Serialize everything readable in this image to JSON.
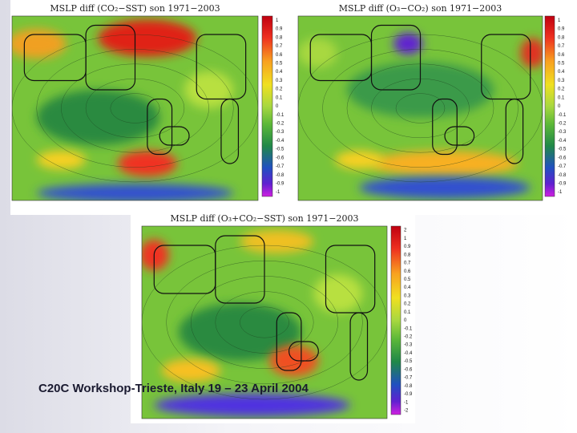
{
  "panels": [
    {
      "title": "MSLP diff (CO₂−SST) son 1971−2003",
      "scale": [
        1,
        0.9,
        0.8,
        0.7,
        0.6,
        0.5,
        0.4,
        0.3,
        0.2,
        0.1,
        0,
        -0.1,
        -0.2,
        -0.3,
        -0.4,
        -0.5,
        -0.6,
        -0.7,
        -0.8,
        -0.9,
        -1
      ]
    },
    {
      "title": "MSLP diff (O₃−CO₂) son 1971−2003",
      "scale": [
        1,
        0.9,
        0.8,
        0.7,
        0.6,
        0.5,
        0.4,
        0.3,
        0.2,
        0.1,
        0,
        -0.1,
        -0.2,
        -0.3,
        -0.4,
        -0.5,
        -0.6,
        -0.7,
        -0.8,
        -0.9,
        -1
      ]
    },
    {
      "title": "MSLP diff (O₃+CO₂−SST) son 1971−2003",
      "scale": [
        2,
        1,
        0.9,
        0.8,
        0.7,
        0.6,
        0.5,
        0.4,
        0.3,
        0.2,
        0.1,
        0,
        -0.1,
        -0.2,
        -0.3,
        -0.4,
        -0.5,
        -0.6,
        -0.7,
        -0.8,
        -0.9,
        -1,
        -2
      ]
    }
  ],
  "footer": "C20C Workshop-Trieste, Italy 19 – 23 April 2004"
}
